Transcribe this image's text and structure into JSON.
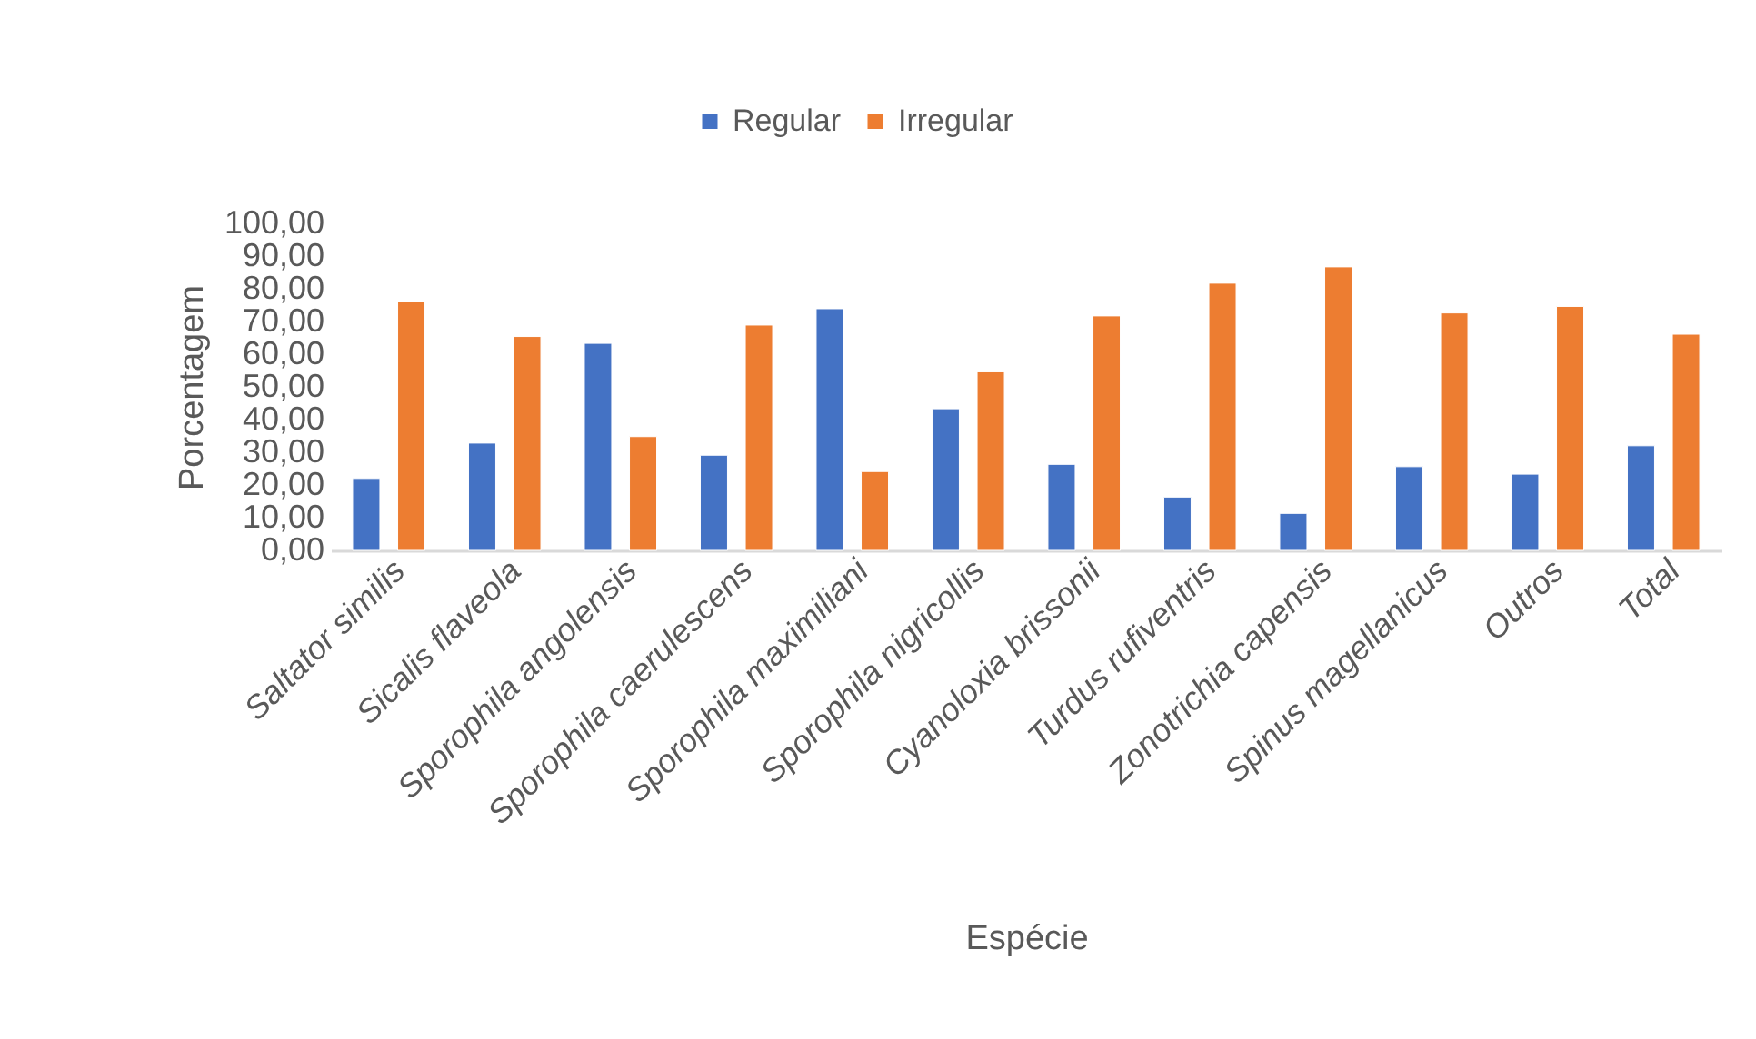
{
  "chart_data": {
    "type": "bar",
    "xlabel": "Espécie",
    "ylabel": "Porcentagem",
    "legend": "top",
    "grid": false,
    "categories": [
      "Saltator similis",
      "Sicalis flaveola",
      "Sporophila angolensis",
      "Sporophila caerulescens",
      "Sporophila maximiliani",
      "Sporophila nigricollis",
      "Cyanoloxia brissonii",
      "Turdus rufiventris",
      "Zonotrichia capensis",
      "Spinus magellanicus",
      "Outros",
      "Total"
    ],
    "series": [
      {
        "name": "Regular",
        "color": "#4472c4",
        "values": [
          22.0,
          32.8,
          63.3,
          29.1,
          73.9,
          43.3,
          26.3,
          16.3,
          11.3,
          25.6,
          23.3,
          32.0
        ]
      },
      {
        "name": "Irregular",
        "color": "#ed7d31",
        "values": [
          76.1,
          65.4,
          34.8,
          68.9,
          24.1,
          54.6,
          71.7,
          81.7,
          86.7,
          72.6,
          74.6,
          66.1
        ]
      }
    ],
    "ylim": [
      0,
      100
    ],
    "yticks": [
      {
        "value": 0,
        "label": "0,00"
      },
      {
        "value": 10,
        "label": "10,00"
      },
      {
        "value": 20,
        "label": "20,00"
      },
      {
        "value": 30,
        "label": "30,00"
      },
      {
        "value": 40,
        "label": "40,00"
      },
      {
        "value": 50,
        "label": "50,00"
      },
      {
        "value": 60,
        "label": "60,00"
      },
      {
        "value": 70,
        "label": "70,00"
      },
      {
        "value": 80,
        "label": "80,00"
      },
      {
        "value": 90,
        "label": "90,00"
      },
      {
        "value": 100,
        "label": "100,00"
      }
    ]
  }
}
